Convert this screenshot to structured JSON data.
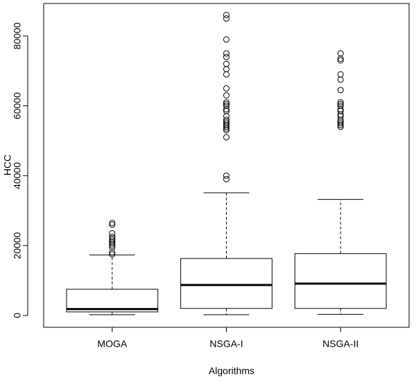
{
  "chart_data": {
    "type": "box",
    "x_label": "Algorithms",
    "y_label": "HCC",
    "categories": [
      "MOGA",
      "NSGA-I",
      "NSGA-II"
    ],
    "boxes": [
      {
        "whisker_low": 200,
        "q1": 1000,
        "median": 1800,
        "q3": 7500,
        "whisker_high": 17300,
        "outliers": [
          17500,
          18000,
          19500,
          20000,
          20500,
          21000,
          21500,
          22000,
          22500,
          23500,
          26000,
          26500
        ]
      },
      {
        "whisker_low": 200,
        "q1": 2000,
        "median": 8700,
        "q3": 16300,
        "whisker_high": 35100,
        "outliers": [
          39000,
          40000,
          51000,
          53000,
          53500,
          54000,
          54500,
          55000,
          55500,
          56000,
          57000,
          58500,
          59000,
          60000,
          60500,
          61000,
          63000,
          65000,
          69000,
          70500,
          72000,
          74000,
          75000,
          79000,
          85000,
          86000
        ]
      },
      {
        "whisker_low": 300,
        "q1": 2000,
        "median": 9100,
        "q3": 17700,
        "whisker_high": 33200,
        "outliers": [
          54000,
          54500,
          55000,
          55500,
          56000,
          57000,
          57500,
          58500,
          59000,
          60000,
          60500,
          61000,
          64500,
          67500,
          69000,
          73000,
          73500,
          75000
        ]
      }
    ],
    "ylim": [
      -3400,
      89300
    ],
    "yticks": [
      0,
      20000,
      40000,
      60000,
      80000
    ]
  }
}
